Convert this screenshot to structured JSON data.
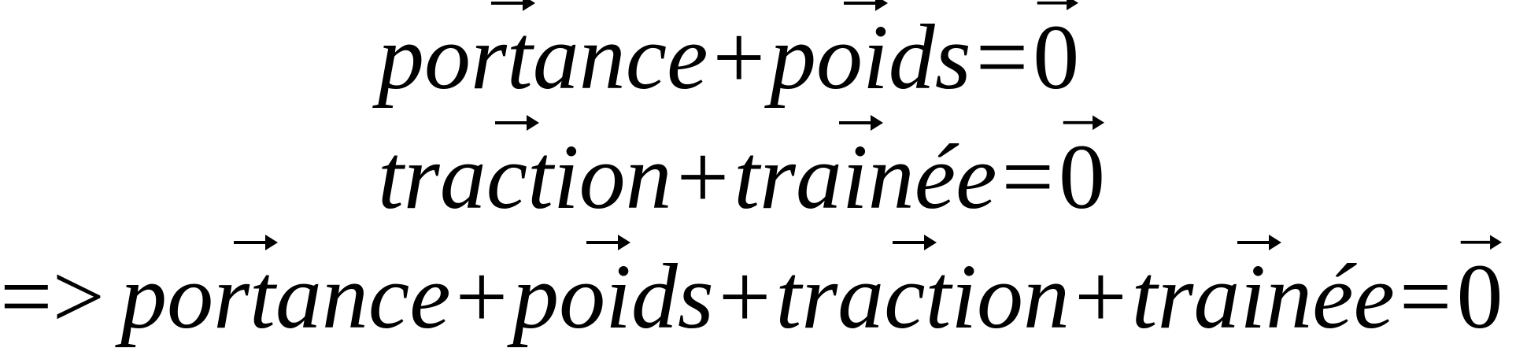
{
  "equations": {
    "line1": {
      "term1": "portance",
      "op1": "+",
      "term2": "poids",
      "eq": "=",
      "zero": "0"
    },
    "line2": {
      "term1": "traction",
      "op1": "+",
      "term2": "trainée",
      "eq": "=",
      "zero": "0"
    },
    "line3": {
      "implies": "=>",
      "term1": "portance",
      "op1": "+",
      "term2": "poids",
      "op2": "+",
      "term3": "traction",
      "op3": "+",
      "term4": "trainée",
      "eq": "=",
      "zero": "0"
    }
  }
}
